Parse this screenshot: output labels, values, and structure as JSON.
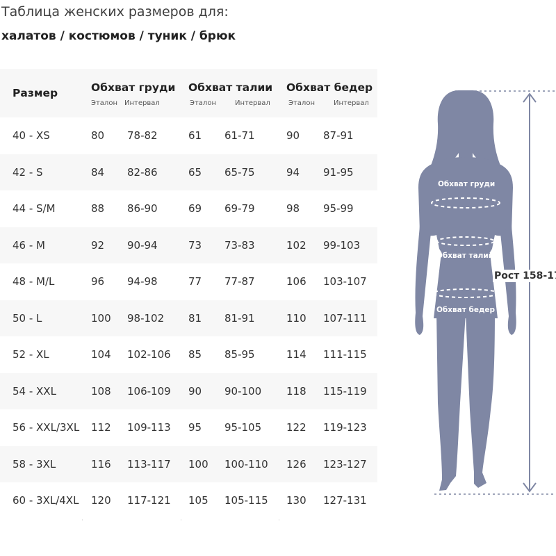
{
  "title": "Таблица женских размеров для:",
  "subtitle": "халатов / костюмов / туник / брюк",
  "table": {
    "headers": {
      "size": "Размер",
      "bust": "Обхват груди",
      "waist": "Обхват талии",
      "hips": "Обхват бедер",
      "sub_standard": "Эталон",
      "sub_interval": "Интервал"
    },
    "rows": [
      {
        "size": "40 - XS",
        "bust": "80",
        "bust_range": "78-82",
        "waist": "61",
        "waist_range": "61-71",
        "hips": "90",
        "hips_range": "87-91"
      },
      {
        "size": "42 - S",
        "bust": "84",
        "bust_range": "82-86",
        "waist": "65",
        "waist_range": "65-75",
        "hips": "94",
        "hips_range": "91-95"
      },
      {
        "size": "44 - S/M",
        "bust": "88",
        "bust_range": "86-90",
        "waist": "69",
        "waist_range": "69-79",
        "hips": "98",
        "hips_range": "95-99"
      },
      {
        "size": "46 - M",
        "bust": "92",
        "bust_range": "90-94",
        "waist": "73",
        "waist_range": "73-83",
        "hips": "102",
        "hips_range": "99-103"
      },
      {
        "size": "48 - M/L",
        "bust": "96",
        "bust_range": "94-98",
        "waist": "77",
        "waist_range": "77-87",
        "hips": "106",
        "hips_range": "103-107"
      },
      {
        "size": "50 - L",
        "bust": "100",
        "bust_range": "98-102",
        "waist": "81",
        "waist_range": "81-91",
        "hips": "110",
        "hips_range": "107-111"
      },
      {
        "size": "52 - XL",
        "bust": "104",
        "bust_range": "102-106",
        "waist": "85",
        "waist_range": "85-95",
        "hips": "114",
        "hips_range": "111-115"
      },
      {
        "size": "54 - XXL",
        "bust": "108",
        "bust_range": "106-109",
        "waist": "90",
        "waist_range": "90-100",
        "hips": "118",
        "hips_range": "115-119"
      },
      {
        "size": "56 - XXL/3XL",
        "bust": "112",
        "bust_range": "109-113",
        "waist": "95",
        "waist_range": "95-105",
        "hips": "122",
        "hips_range": "119-123"
      },
      {
        "size": "58 - 3XL",
        "bust": "116",
        "bust_range": "113-117",
        "waist": "100",
        "waist_range": "100-110",
        "hips": "126",
        "hips_range": "123-127"
      },
      {
        "size": "60 - 3XL/4XL",
        "bust": "120",
        "bust_range": "117-121",
        "waist": "105",
        "waist_range": "105-115",
        "hips": "130",
        "hips_range": "127-131"
      }
    ]
  },
  "figure": {
    "bust_label": "Обхват груди",
    "waist_label": "Обхват талии",
    "hips_label": "Обхват бедер",
    "height_label": "Рост 158-17",
    "silhouette_color": "#7f87a4",
    "icon": "woman-silhouette-icon"
  },
  "colors": {
    "row_alt": "#f7f7f7",
    "text": "#333333",
    "guide_lines": "#7f87a4"
  }
}
